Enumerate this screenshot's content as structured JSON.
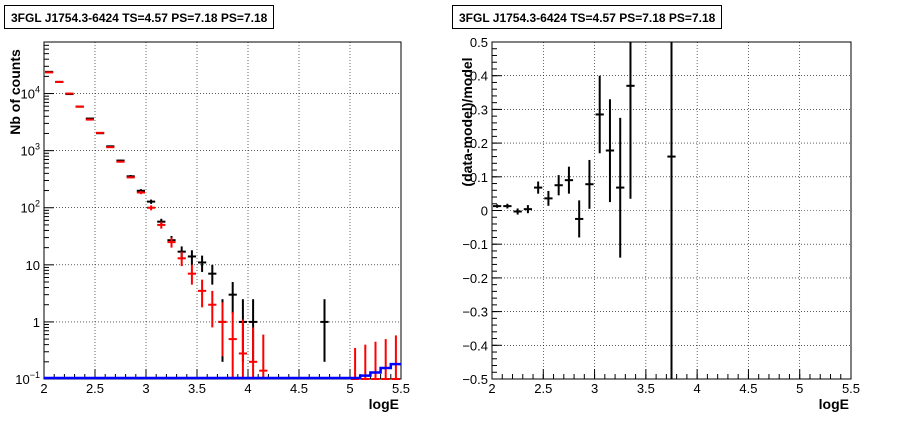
{
  "chart_data": [
    {
      "type": "scatter",
      "title": "3FGL J1754.3-6424 TS=4.57 PS=7.18 PS=7.18",
      "xlabel": "logE",
      "ylabel": "Nb of counts",
      "xlim": [
        2,
        5.5
      ],
      "ylim": [
        0.1,
        80000
      ],
      "yscale": "log",
      "grid": true,
      "xticks": [
        "2",
        "2.5",
        "3",
        "3.5",
        "4",
        "4.5",
        "5",
        "5.5"
      ],
      "yticks": [
        {
          "value": 0.1,
          "mant": "10",
          "exp": "−1"
        },
        {
          "value": 1,
          "mant": "1",
          "exp": ""
        },
        {
          "value": 10,
          "mant": "10",
          "exp": ""
        },
        {
          "value": 100,
          "mant": "10",
          "exp": "2"
        },
        {
          "value": 1000,
          "mant": "10",
          "exp": "3"
        },
        {
          "value": 10000,
          "mant": "10",
          "exp": "4"
        }
      ],
      "bin_width": 0.1,
      "series": [
        {
          "color": "#000000",
          "points": [
            {
              "x": 2.05,
              "y": 24000,
              "lo": 23800,
              "hi": 24200
            },
            {
              "x": 2.15,
              "y": 16000,
              "lo": 15850,
              "hi": 16150
            },
            {
              "x": 2.25,
              "y": 9800,
              "lo": 9700,
              "hi": 9900
            },
            {
              "x": 2.35,
              "y": 5900,
              "lo": 5820,
              "hi": 5980
            },
            {
              "x": 2.45,
              "y": 3650,
              "lo": 3590,
              "hi": 3710
            },
            {
              "x": 2.55,
              "y": 2020,
              "lo": 1975,
              "hi": 2065
            },
            {
              "x": 2.65,
              "y": 1190,
              "lo": 1155,
              "hi": 1225
            },
            {
              "x": 2.75,
              "y": 670,
              "lo": 644,
              "hi": 696
            },
            {
              "x": 2.85,
              "y": 355,
              "lo": 336,
              "hi": 374
            },
            {
              "x": 2.95,
              "y": 198,
              "lo": 184,
              "hi": 212
            },
            {
              "x": 3.05,
              "y": 128,
              "lo": 117,
              "hi": 139
            },
            {
              "x": 3.15,
              "y": 57,
              "lo": 50,
              "hi": 64
            },
            {
              "x": 3.25,
              "y": 27,
              "lo": 22,
              "hi": 32
            },
            {
              "x": 3.35,
              "y": 17,
              "lo": 13,
              "hi": 21
            },
            {
              "x": 3.45,
              "y": 14,
              "lo": 10,
              "hi": 18
            },
            {
              "x": 3.55,
              "y": 11,
              "lo": 7.5,
              "hi": 14.5
            },
            {
              "x": 3.65,
              "y": 7,
              "lo": 4.5,
              "hi": 10
            },
            {
              "x": 3.75,
              "y": 1,
              "lo": 0.2,
              "hi": 2.5
            },
            {
              "x": 3.85,
              "y": 3,
              "lo": 1.4,
              "hi": 5
            },
            {
              "x": 3.95,
              "y": 1,
              "lo": 0.2,
              "hi": 2.5
            },
            {
              "x": 4.05,
              "y": 1,
              "lo": 0.2,
              "hi": 2.5
            },
            {
              "x": 4.75,
              "y": 1,
              "lo": 0.2,
              "hi": 2.5
            }
          ]
        },
        {
          "color": "#ff0000",
          "points": [
            {
              "x": 2.05,
              "y": 23500,
              "lo": 23200,
              "hi": 23800
            },
            {
              "x": 2.15,
              "y": 16000,
              "lo": 15800,
              "hi": 16200
            },
            {
              "x": 2.25,
              "y": 10000,
              "lo": 9850,
              "hi": 10150
            },
            {
              "x": 2.35,
              "y": 5900,
              "lo": 5800,
              "hi": 6000
            },
            {
              "x": 2.45,
              "y": 3500,
              "lo": 3440,
              "hi": 3560
            },
            {
              "x": 2.55,
              "y": 2050,
              "lo": 2000,
              "hi": 2100
            },
            {
              "x": 2.65,
              "y": 1150,
              "lo": 1120,
              "hi": 1180
            },
            {
              "x": 2.75,
              "y": 640,
              "lo": 618,
              "hi": 662
            },
            {
              "x": 2.85,
              "y": 340,
              "lo": 325,
              "hi": 355
            },
            {
              "x": 2.95,
              "y": 185,
              "lo": 173,
              "hi": 197
            },
            {
              "x": 3.05,
              "y": 100,
              "lo": 90,
              "hi": 110
            },
            {
              "x": 3.15,
              "y": 50,
              "lo": 43,
              "hi": 57
            },
            {
              "x": 3.25,
              "y": 25,
              "lo": 20,
              "hi": 30
            },
            {
              "x": 3.35,
              "y": 13,
              "lo": 9.5,
              "hi": 17
            },
            {
              "x": 3.45,
              "y": 7,
              "lo": 4.5,
              "hi": 10
            },
            {
              "x": 3.55,
              "y": 3.5,
              "lo": 1.8,
              "hi": 5.5
            },
            {
              "x": 3.65,
              "y": 2,
              "lo": 0.8,
              "hi": 3.5
            },
            {
              "x": 3.75,
              "y": 1,
              "lo": 0.25,
              "hi": 2.2
            },
            {
              "x": 3.85,
              "y": 0.5,
              "lo": 0.1,
              "hi": 1.5
            },
            {
              "x": 3.95,
              "y": 0.28,
              "lo": 0.1,
              "hi": 1.1
            },
            {
              "x": 4.05,
              "y": 0.2,
              "lo": 0.1,
              "hi": 0.8
            },
            {
              "x": 4.15,
              "y": 0.14,
              "lo": 0.1,
              "hi": 0.6
            },
            {
              "x": 5.05,
              "y": 0.1,
              "lo": 0.1,
              "hi": 0.35
            },
            {
              "x": 5.15,
              "y": 0.1,
              "lo": 0.1,
              "hi": 0.4
            },
            {
              "x": 5.25,
              "y": 0.1,
              "lo": 0.1,
              "hi": 0.45
            },
            {
              "x": 5.35,
              "y": 0.1,
              "lo": 0.1,
              "hi": 0.5
            },
            {
              "x": 5.45,
              "y": 0.1,
              "lo": 0.1,
              "hi": 0.58
            }
          ]
        },
        {
          "color": "#0000ff",
          "kind": "histogram",
          "bins": [
            {
              "x": 2.05,
              "y": 0.1
            },
            {
              "x": 2.15,
              "y": 0.1
            },
            {
              "x": 2.25,
              "y": 0.1
            },
            {
              "x": 2.35,
              "y": 0.1
            },
            {
              "x": 2.45,
              "y": 0.1
            },
            {
              "x": 2.55,
              "y": 0.1
            },
            {
              "x": 2.65,
              "y": 0.1
            },
            {
              "x": 2.75,
              "y": 0.1
            },
            {
              "x": 2.85,
              "y": 0.1
            },
            {
              "x": 2.95,
              "y": 0.1
            },
            {
              "x": 3.05,
              "y": 0.1
            },
            {
              "x": 3.15,
              "y": 0.1
            },
            {
              "x": 3.25,
              "y": 0.1
            },
            {
              "x": 3.35,
              "y": 0.1
            },
            {
              "x": 3.45,
              "y": 0.1
            },
            {
              "x": 3.55,
              "y": 0.1
            },
            {
              "x": 3.65,
              "y": 0.1
            },
            {
              "x": 3.75,
              "y": 0.1
            },
            {
              "x": 3.85,
              "y": 0.1
            },
            {
              "x": 3.95,
              "y": 0.1
            },
            {
              "x": 4.05,
              "y": 0.1
            },
            {
              "x": 4.15,
              "y": 0.1
            },
            {
              "x": 4.25,
              "y": 0.1
            },
            {
              "x": 4.35,
              "y": 0.1
            },
            {
              "x": 4.45,
              "y": 0.1
            },
            {
              "x": 4.55,
              "y": 0.1
            },
            {
              "x": 4.65,
              "y": 0.1
            },
            {
              "x": 4.75,
              "y": 0.1
            },
            {
              "x": 4.85,
              "y": 0.1
            },
            {
              "x": 4.95,
              "y": 0.1
            },
            {
              "x": 5.05,
              "y": 0.1
            },
            {
              "x": 5.15,
              "y": 0.11
            },
            {
              "x": 5.25,
              "y": 0.125
            },
            {
              "x": 5.35,
              "y": 0.15
            },
            {
              "x": 5.45,
              "y": 0.175
            }
          ]
        }
      ]
    },
    {
      "type": "scatter",
      "title": "3FGL J1754.3-6424 TS=4.57 PS=7.18 PS=7.18",
      "xlabel": "logE",
      "ylabel": "(data-model)/model",
      "xlim": [
        2,
        5.5
      ],
      "ylim": [
        -0.5,
        0.5
      ],
      "grid": true,
      "xticks": [
        "2",
        "2.5",
        "3",
        "3.5",
        "4",
        "4.5",
        "5",
        "5.5"
      ],
      "yticks": [
        "−0.5",
        "−0.4",
        "−0.3",
        "−0.2",
        "−0.1",
        "0",
        "0.1",
        "0.2",
        "0.3",
        "0.4",
        "0.5"
      ],
      "bin_width": 0.1,
      "series": [
        {
          "color": "#000000",
          "points": [
            {
              "x": 2.05,
              "y": 0.013,
              "lo": 0.008,
              "hi": 0.018
            },
            {
              "x": 2.15,
              "y": 0.013,
              "lo": 0.006,
              "hi": 0.02
            },
            {
              "x": 2.25,
              "y": -0.003,
              "lo": -0.012,
              "hi": 0.006
            },
            {
              "x": 2.35,
              "y": 0.004,
              "lo": -0.008,
              "hi": 0.016
            },
            {
              "x": 2.45,
              "y": 0.068,
              "lo": 0.05,
              "hi": 0.086
            },
            {
              "x": 2.55,
              "y": 0.036,
              "lo": 0.014,
              "hi": 0.058
            },
            {
              "x": 2.65,
              "y": 0.075,
              "lo": 0.045,
              "hi": 0.105
            },
            {
              "x": 2.75,
              "y": 0.09,
              "lo": 0.05,
              "hi": 0.13
            },
            {
              "x": 2.85,
              "y": -0.025,
              "lo": -0.08,
              "hi": 0.03
            },
            {
              "x": 2.95,
              "y": 0.078,
              "lo": 0.005,
              "hi": 0.15
            },
            {
              "x": 3.05,
              "y": 0.285,
              "lo": 0.17,
              "hi": 0.4
            },
            {
              "x": 3.15,
              "y": 0.178,
              "lo": 0.025,
              "hi": 0.33
            },
            {
              "x": 3.25,
              "y": 0.068,
              "lo": -0.14,
              "hi": 0.275
            },
            {
              "x": 3.35,
              "y": 0.37,
              "lo": 0.035,
              "hi": 0.5
            },
            {
              "x": 3.75,
              "y": 0.16,
              "lo": -0.5,
              "hi": 0.5
            }
          ]
        }
      ]
    }
  ]
}
